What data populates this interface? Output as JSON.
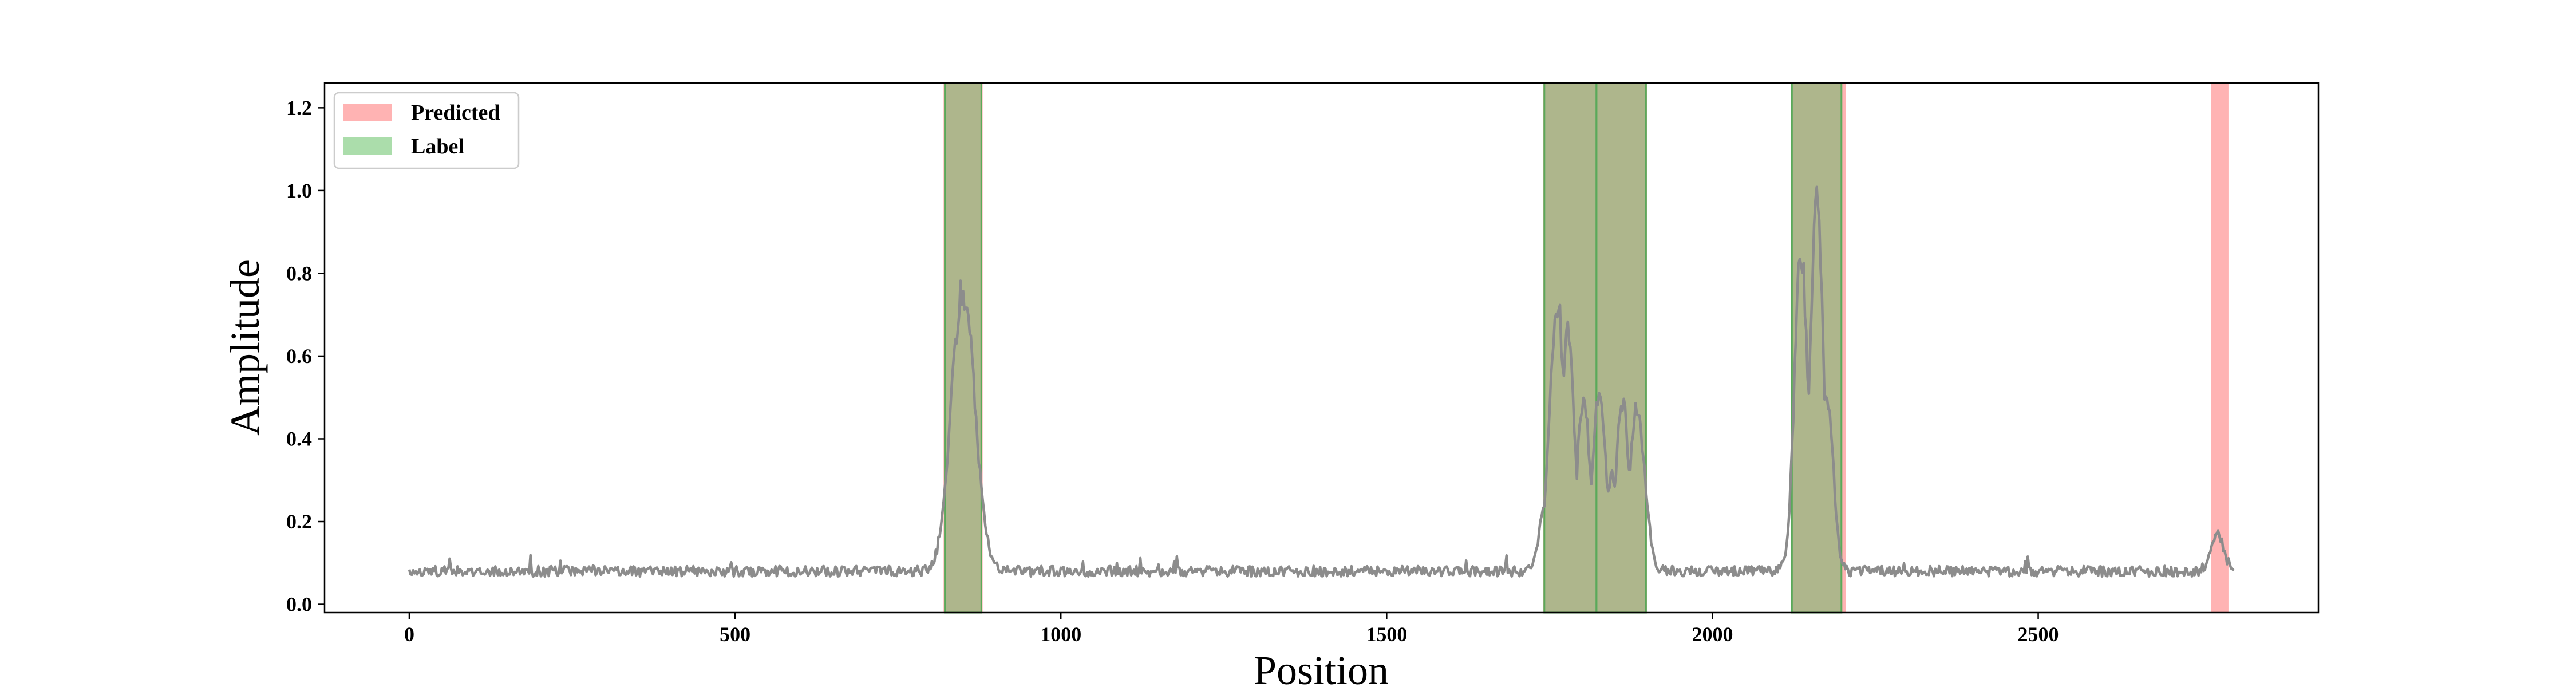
{
  "chart_data": {
    "type": "line",
    "xlabel": "Position",
    "ylabel": "Amplitude",
    "xlim": [
      -130,
      2930
    ],
    "ylim": [
      -0.02,
      1.26
    ],
    "xticks": [
      0,
      500,
      1000,
      1500,
      2000,
      2500
    ],
    "yticks": [
      0.0,
      0.2,
      0.4,
      0.6,
      0.8,
      1.0,
      1.2
    ],
    "xtick_labels": [
      "0",
      "500",
      "1000",
      "1500",
      "2000",
      "2500"
    ],
    "ytick_labels": [
      "0.0",
      "0.2",
      "0.4",
      "0.6",
      "0.8",
      "1.0",
      "1.2"
    ],
    "grid": false,
    "legend": {
      "placement": "top-left",
      "entries": [
        {
          "label": "Predicted",
          "color": "#ff9999"
        },
        {
          "label": "Label",
          "color": "#8fd18f"
        }
      ]
    },
    "signal": {
      "color": "#8c8c8c",
      "x_start": 0,
      "x_end": 2800,
      "baseline": 0.08,
      "peaks": [
        {
          "center": 850,
          "width": 18,
          "height": 0.79
        },
        {
          "center": 1745,
          "width": 10,
          "height": 0.25
        },
        {
          "center": 1762,
          "width": 12,
          "height": 0.76
        },
        {
          "center": 1778,
          "width": 10,
          "height": 0.7
        },
        {
          "center": 1802,
          "width": 10,
          "height": 0.51
        },
        {
          "center": 1826,
          "width": 10,
          "height": 0.53
        },
        {
          "center": 1845,
          "width": 10,
          "height": 0.32
        },
        {
          "center": 1862,
          "width": 10,
          "height": 0.51
        },
        {
          "center": 1884,
          "width": 12,
          "height": 0.48
        },
        {
          "center": 2136,
          "width": 10,
          "height": 0.9
        },
        {
          "center": 2160,
          "width": 10,
          "height": 1.02
        },
        {
          "center": 2175,
          "width": 10,
          "height": 0.53
        },
        {
          "center": 2115,
          "width": 6,
          "height": 0.12
        },
        {
          "center": 2775,
          "width": 10,
          "height": 0.17
        }
      ]
    },
    "predicted_regions": [
      [
        820,
        880
      ],
      [
        1740,
        1900
      ],
      [
        2120,
        2205
      ],
      [
        2765,
        2792
      ]
    ],
    "label_regions": [
      [
        822,
        878
      ],
      [
        1742,
        1822
      ],
      [
        1822,
        1898
      ],
      [
        2122,
        2198
      ]
    ]
  }
}
